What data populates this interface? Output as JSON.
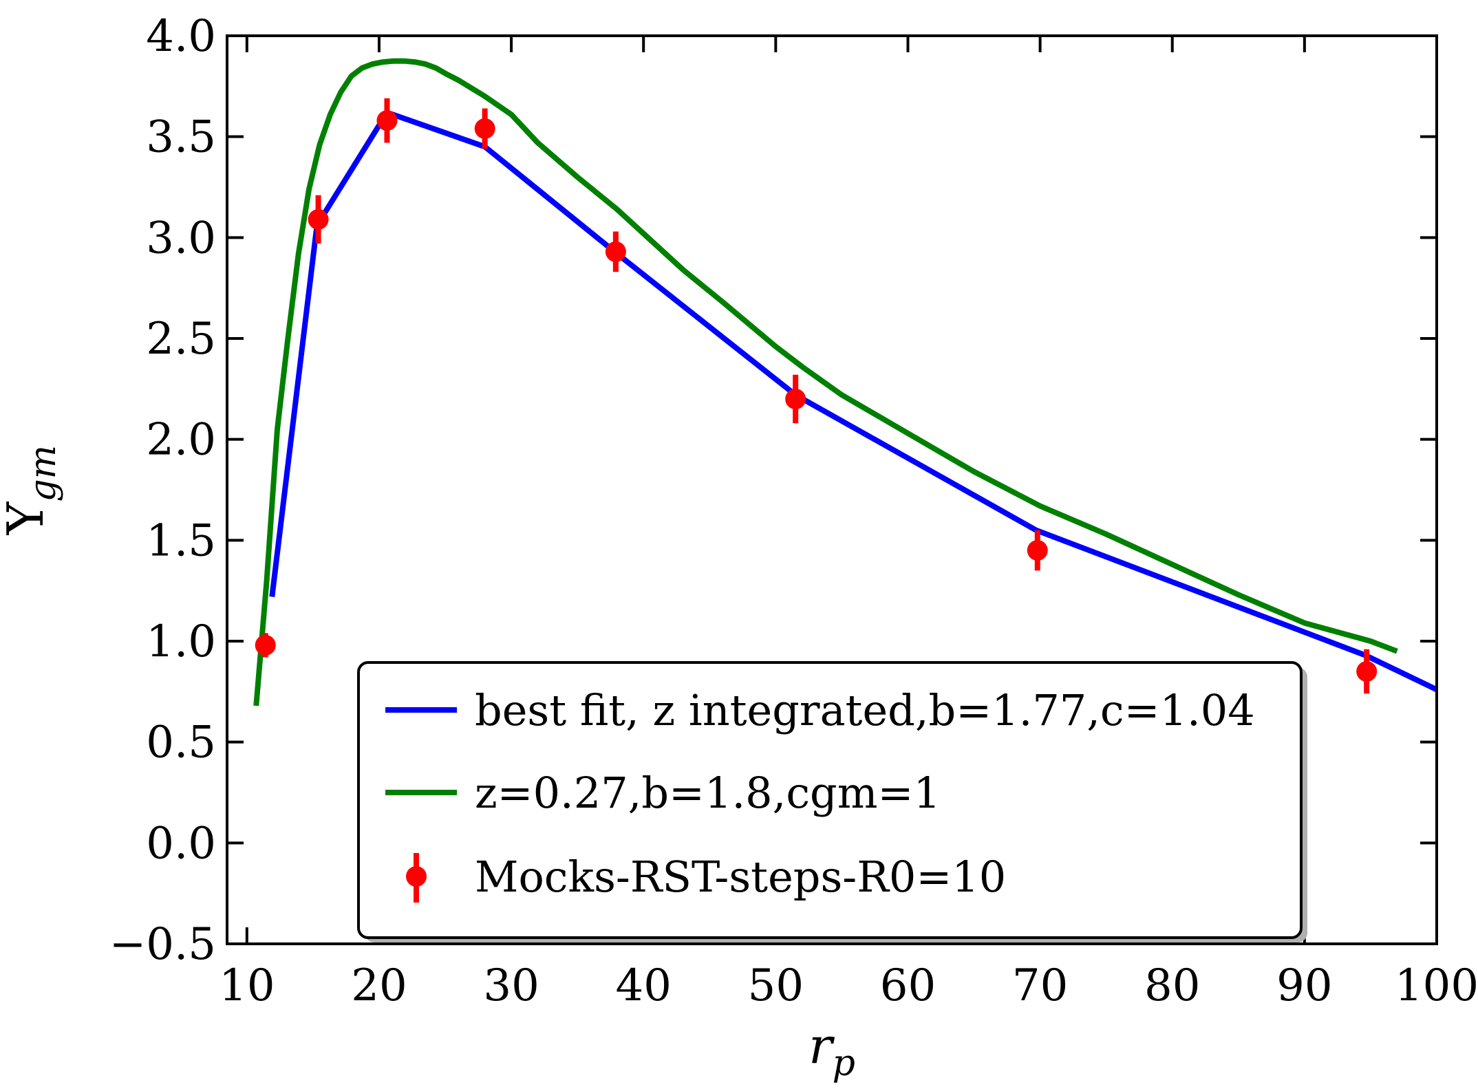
{
  "chart_data": {
    "type": "line",
    "xlabel": "r",
    "xlabel_sub": "p",
    "ylabel": "Υ",
    "ylabel_sub": "gm",
    "xlim": [
      8.5,
      100
    ],
    "ylim": [
      -0.5,
      4.0
    ],
    "xticks": [
      10,
      20,
      30,
      40,
      50,
      60,
      70,
      80,
      90,
      100
    ],
    "yticks": [
      -0.5,
      0.0,
      0.5,
      1.0,
      1.5,
      2.0,
      2.5,
      3.0,
      3.5,
      4.0
    ],
    "xtick_labels": [
      "10",
      "20",
      "30",
      "40",
      "50",
      "60",
      "70",
      "80",
      "90",
      "100"
    ],
    "ytick_labels": [
      "−0.5",
      "0.0",
      "0.5",
      "1.0",
      "1.5",
      "2.0",
      "2.5",
      "3.0",
      "3.5",
      "4.0"
    ],
    "grid": false,
    "legend_position": "bottom-right",
    "series": [
      {
        "name": "best fit, z integrated,b=1.77,c=1.04",
        "kind": "line",
        "color": "#0000ff",
        "x": [
          11.9,
          15.3,
          20.6,
          28.0,
          38.0,
          51.5,
          69.7,
          94.6,
          100.0
        ],
        "y": [
          1.22,
          3.06,
          3.62,
          3.45,
          2.92,
          2.22,
          1.55,
          0.93,
          0.76
        ]
      },
      {
        "name": "z=0.27,b=1.8,cgm=1",
        "kind": "line",
        "color": "#008000",
        "x": [
          10.7,
          11.5,
          12.3,
          13.1,
          13.9,
          14.7,
          15.5,
          16.3,
          17.1,
          17.9,
          18.7,
          19.5,
          20.3,
          21.1,
          21.9,
          22.7,
          23.5,
          24.3,
          25.1,
          26.0,
          28.0,
          30.0,
          32.0,
          35.0,
          38.0,
          40.0,
          43.0,
          46.0,
          50.0,
          52.0,
          55.0,
          60.0,
          65.0,
          70.0,
          75.0,
          80.0,
          85.0,
          90.0,
          95.0,
          97.0
        ],
        "y": [
          0.68,
          1.3,
          2.05,
          2.5,
          2.92,
          3.24,
          3.46,
          3.61,
          3.72,
          3.8,
          3.84,
          3.86,
          3.87,
          3.875,
          3.875,
          3.87,
          3.86,
          3.84,
          3.81,
          3.78,
          3.7,
          3.61,
          3.47,
          3.3,
          3.14,
          3.02,
          2.84,
          2.68,
          2.46,
          2.36,
          2.22,
          2.03,
          1.84,
          1.67,
          1.53,
          1.38,
          1.23,
          1.09,
          1.0,
          0.95
        ]
      },
      {
        "name": "Mocks-RST-steps-R0=10",
        "kind": "errorbar",
        "color": "#ff0000",
        "x": [
          11.4,
          15.4,
          20.6,
          28.0,
          37.9,
          51.5,
          69.8,
          94.7
        ],
        "y": [
          0.98,
          3.09,
          3.58,
          3.54,
          2.93,
          2.2,
          1.45,
          0.85
        ],
        "yerr": [
          0.06,
          0.12,
          0.11,
          0.1,
          0.1,
          0.12,
          0.1,
          0.11
        ]
      }
    ]
  }
}
